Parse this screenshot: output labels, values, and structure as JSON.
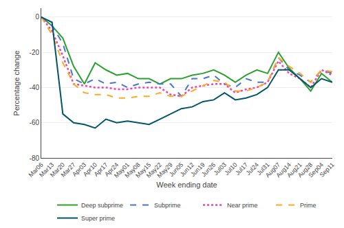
{
  "chart_data": {
    "type": "line",
    "xlabel": "Week ending date",
    "ylabel": "Percentage change",
    "categories": [
      "Mar06",
      "Mar13",
      "Mar20",
      "Mar27",
      "Apr03",
      "Apr10",
      "Apr17",
      "Apr24",
      "May01",
      "May08",
      "May15",
      "May22",
      "May29",
      "Jun05",
      "Jun12",
      "Jun19",
      "Jun26",
      "Jul03",
      "Jul10",
      "Jul17",
      "Jul24",
      "Jul31",
      "Aug07",
      "Aug14",
      "Aug21",
      "Aug28",
      "Sep04",
      "Sep11"
    ],
    "series": [
      {
        "name": "Deep subprime",
        "color": "#2ca02c",
        "line_style": "solid",
        "values": [
          0,
          -5,
          -12,
          -28,
          -38,
          -26,
          -30,
          -33,
          -32,
          -35,
          -35,
          -38,
          -35,
          -35,
          -33,
          -32,
          -30,
          -33,
          -37,
          -33,
          -30,
          -32,
          -20,
          -29,
          -35,
          -42,
          -32,
          -37
        ]
      },
      {
        "name": "Subprime",
        "color": "#4477cc",
        "line_style": "dashed",
        "values": [
          0,
          -5,
          -15,
          -35,
          -38,
          -35,
          -38,
          -37,
          -40,
          -38,
          -37,
          -38,
          -38,
          -45,
          -35,
          -35,
          -33,
          -38,
          -40,
          -35,
          -37,
          -37,
          -23,
          -30,
          -33,
          -37,
          -30,
          -32
        ]
      },
      {
        "name": "Near prime",
        "color": "#ee44aa",
        "line_style": "dotted",
        "values": [
          0,
          -8,
          -22,
          -38,
          -39,
          -40,
          -40,
          -41,
          -41,
          -40,
          -40,
          -40,
          -44,
          -45,
          -40,
          -39,
          -38,
          -38,
          -43,
          -41,
          -40,
          -37,
          -25,
          -32,
          -35,
          -40,
          -30,
          -33
        ]
      },
      {
        "name": "Prime",
        "color": "#ffaa22",
        "line_style": "dashed",
        "values": [
          0,
          -10,
          -26,
          -38,
          -43,
          -44,
          -44,
          -46,
          -46,
          -45,
          -45,
          -43,
          -45,
          -45,
          -42,
          -39,
          -36,
          -37,
          -42,
          -42,
          -40,
          -37,
          -23,
          -28,
          -32,
          -37,
          -30,
          -31
        ]
      },
      {
        "name": "Super prime",
        "color": "#005566",
        "line_style": "solid",
        "values": [
          0,
          -3,
          -55,
          -60,
          -61,
          -63,
          -58,
          -60,
          -59,
          -60,
          -61,
          -58,
          -55,
          -52,
          -51,
          -48,
          -47,
          -43,
          -47,
          -46,
          -44,
          -40,
          -30,
          -30,
          -35,
          -40,
          -35,
          -37
        ]
      }
    ],
    "ylim": [
      -80,
      5
    ],
    "yticks": [
      0,
      -20,
      -40,
      -60,
      -80
    ],
    "grid": true,
    "legend": "bottom"
  }
}
